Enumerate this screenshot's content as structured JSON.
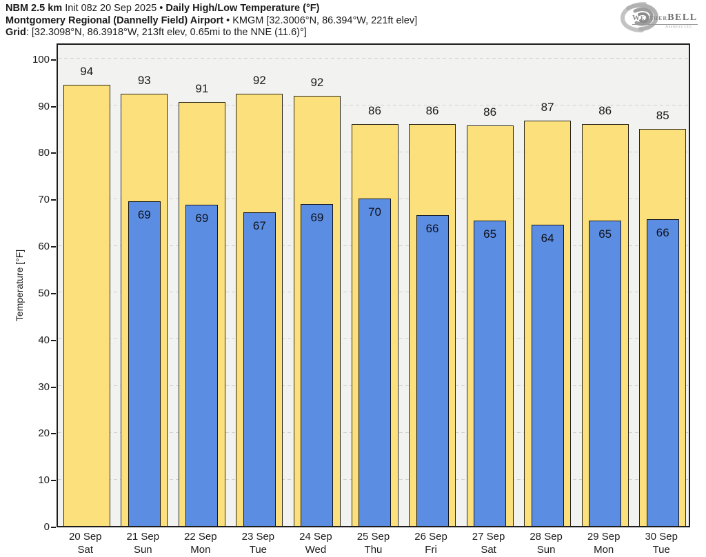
{
  "header": {
    "line1": {
      "app": "NBM 2.5 km",
      "init": " Init 08z 20 Sep 2025 ",
      "sep": "•",
      "title": " Daily High/Low Temperature (°F)"
    },
    "line2": {
      "station": "Montgomery Regional (Dannelly Field) Airport",
      "sep": "•",
      "detail": " KMGM [32.3006°N, 86.394°W, 221ft elev]"
    },
    "line3": {
      "label": "Grid",
      "detail": ": [32.3098°N, 86.3918°W, 213ft elev, 0.65mi to the NNE (11.6)°]"
    }
  },
  "logo": {
    "weather": "Weather",
    "bell": "BELL",
    "subtitle": "Analytics LLC"
  },
  "chart_data": {
    "type": "bar",
    "title": "Daily High/Low Temperature (°F)",
    "ylabel": "Temperature [°F]",
    "xlabel": "",
    "ylim": [
      0,
      103.5
    ],
    "yticks": [
      0,
      10,
      20,
      30,
      40,
      50,
      60,
      70,
      80,
      90,
      100
    ],
    "grid": "horizontal-dashed",
    "legend": "none",
    "categories": [
      {
        "date": "20 Sep",
        "day": "Sat"
      },
      {
        "date": "21 Sep",
        "day": "Sun"
      },
      {
        "date": "22 Sep",
        "day": "Mon"
      },
      {
        "date": "23 Sep",
        "day": "Tue"
      },
      {
        "date": "24 Sep",
        "day": "Wed"
      },
      {
        "date": "25 Sep",
        "day": "Thu"
      },
      {
        "date": "26 Sep",
        "day": "Fri"
      },
      {
        "date": "27 Sep",
        "day": "Sat"
      },
      {
        "date": "28 Sep",
        "day": "Sun"
      },
      {
        "date": "29 Sep",
        "day": "Mon"
      },
      {
        "date": "30 Sep",
        "day": "Tue"
      }
    ],
    "series": [
      {
        "name": "High",
        "labels": [
          94,
          93,
          91,
          92,
          92,
          86,
          86,
          86,
          87,
          86,
          85
        ],
        "bar_values": [
          94.4,
          92.5,
          90.7,
          92.4,
          92.0,
          86.0,
          86.0,
          85.6,
          86.7,
          86.0,
          84.9
        ],
        "fill": "#fbe07b"
      },
      {
        "name": "Low",
        "labels": [
          null,
          69,
          69,
          67,
          69,
          70,
          66,
          65,
          64,
          65,
          66
        ],
        "bar_values": [
          null,
          69.4,
          68.7,
          67.1,
          68.9,
          70.0,
          66.5,
          65.3,
          64.5,
          65.3,
          65.6
        ],
        "fill": "#5b8de2"
      }
    ],
    "colors": {
      "high_fill": "#fbe07b",
      "low_fill": "#5b8de2",
      "bar_border": "#1c1c1c",
      "plot_bg": "#f2f2f0",
      "gridline": "#cfcfcd",
      "axis": "#1c1c1c",
      "text": "#1a1a1a"
    }
  }
}
